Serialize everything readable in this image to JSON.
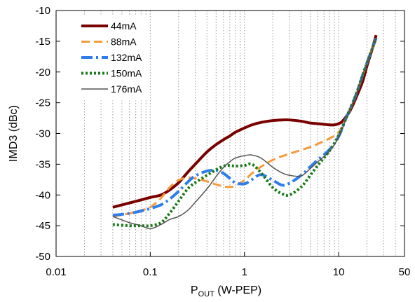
{
  "chart_data": {
    "type": "line",
    "title": "",
    "xlabel": {
      "main": "P",
      "sub": "OUT",
      "rest": " (W-PEP)"
    },
    "ylabel": "IMD3 (dBc)",
    "xscale": "log",
    "xlim": [
      0.01,
      50
    ],
    "ylim": [
      -50,
      -10
    ],
    "xticks": [
      {
        "value": 0.01,
        "label": "0.01"
      },
      {
        "value": 0.1,
        "label": "0.1"
      },
      {
        "value": 1,
        "label": "1"
      },
      {
        "value": 10,
        "label": "10"
      },
      {
        "value": 50,
        "label": "50"
      }
    ],
    "yticks": [
      {
        "value": -10,
        "label": "-10"
      },
      {
        "value": -15,
        "label": "-15"
      },
      {
        "value": -20,
        "label": "-20"
      },
      {
        "value": -25,
        "label": "-25"
      },
      {
        "value": -30,
        "label": "-30"
      },
      {
        "value": -35,
        "label": "-35"
      },
      {
        "value": -40,
        "label": "-40"
      },
      {
        "value": -45,
        "label": "-45"
      },
      {
        "value": -50,
        "label": "-50"
      }
    ],
    "grid": "vertical minor log lines dotted",
    "legend_position": "top-left",
    "series": [
      {
        "name": "44mA",
        "color": "#7a0000",
        "dash": "solid",
        "width": 4,
        "x": [
          0.04,
          0.06,
          0.08,
          0.1,
          0.13,
          0.16,
          0.2,
          0.25,
          0.3,
          0.4,
          0.5,
          0.6,
          0.7,
          0.8,
          1.0,
          1.2,
          1.5,
          2.0,
          2.5,
          3.0,
          4.0,
          5.0,
          6.0,
          7.0,
          8.0,
          9.0,
          10.0,
          11.0,
          13.0,
          15.0,
          18.0,
          20.0,
          23.0,
          25.0
        ],
        "y": [
          -42.0,
          -41.3,
          -40.8,
          -40.4,
          -40.0,
          -39.2,
          -38.0,
          -36.3,
          -35.0,
          -33.0,
          -31.8,
          -31.0,
          -30.4,
          -29.8,
          -29.1,
          -28.6,
          -28.2,
          -27.9,
          -27.8,
          -27.8,
          -28.0,
          -28.3,
          -28.4,
          -28.5,
          -28.6,
          -28.6,
          -28.4,
          -28.0,
          -26.5,
          -24.5,
          -21.5,
          -19.0,
          -16.0,
          -14.0
        ]
      },
      {
        "name": "88mA",
        "color": "#f59a3d",
        "dash": "long-dash",
        "width": 3,
        "x": [
          0.04,
          0.06,
          0.08,
          0.1,
          0.13,
          0.16,
          0.2,
          0.25,
          0.3,
          0.4,
          0.5,
          0.6,
          0.7,
          0.8,
          1.0,
          1.2,
          1.5,
          2.0,
          3.0,
          4.0,
          5.0,
          6.0,
          8.0,
          10.0,
          12.0,
          15.0,
          18.0,
          20.0,
          23.0,
          25.0
        ],
        "y": [
          -43.5,
          -43.0,
          -42.5,
          -42.0,
          -40.5,
          -38.8,
          -37.6,
          -37.2,
          -37.3,
          -37.8,
          -38.3,
          -38.6,
          -38.7,
          -38.5,
          -37.6,
          -36.5,
          -35.4,
          -34.3,
          -33.3,
          -32.7,
          -32.2,
          -31.7,
          -30.8,
          -29.8,
          -27.5,
          -24.0,
          -20.5,
          -18.5,
          -16.0,
          -14.5
        ]
      },
      {
        "name": "132mA",
        "color": "#2e7de9",
        "dash": "dash-dot",
        "width": 4,
        "x": [
          0.04,
          0.06,
          0.08,
          0.1,
          0.13,
          0.16,
          0.2,
          0.25,
          0.3,
          0.4,
          0.5,
          0.6,
          0.7,
          0.8,
          1.0,
          1.2,
          1.5,
          2.0,
          2.5,
          3.0,
          4.0,
          5.0,
          6.0,
          8.0,
          10.0,
          12.0,
          15.0,
          18.0,
          20.0,
          23.0,
          25.0
        ],
        "y": [
          -43.3,
          -43.0,
          -42.6,
          -42.2,
          -41.6,
          -40.7,
          -39.4,
          -37.9,
          -36.9,
          -36.1,
          -36.0,
          -36.5,
          -37.3,
          -38.0,
          -38.2,
          -37.5,
          -36.7,
          -37.6,
          -38.4,
          -38.1,
          -36.8,
          -35.4,
          -34.3,
          -32.6,
          -30.5,
          -27.5,
          -24.0,
          -20.5,
          -18.5,
          -16.0,
          -14.5
        ]
      },
      {
        "name": "150mA",
        "color": "#1a7a1a",
        "dash": "dotted",
        "width": 4,
        "x": [
          0.04,
          0.06,
          0.08,
          0.1,
          0.13,
          0.16,
          0.2,
          0.25,
          0.3,
          0.4,
          0.5,
          0.6,
          0.7,
          0.8,
          1.0,
          1.2,
          1.5,
          2.0,
          2.5,
          3.0,
          4.0,
          5.0,
          6.0,
          8.0,
          10.0,
          12.0,
          15.0,
          18.0,
          20.0,
          23.0,
          25.0
        ],
        "y": [
          -44.8,
          -45.0,
          -45.0,
          -45.0,
          -44.5,
          -43.0,
          -41.0,
          -39.0,
          -38.0,
          -36.8,
          -35.9,
          -35.3,
          -35.2,
          -35.3,
          -35.2,
          -35.0,
          -36.4,
          -38.8,
          -39.8,
          -40.0,
          -38.7,
          -36.8,
          -35.2,
          -32.8,
          -30.3,
          -27.5,
          -24.0,
          -20.5,
          -18.5,
          -16.0,
          -14.5
        ]
      },
      {
        "name": "176mA",
        "color": "#555555",
        "dash": "solid",
        "width": 1.5,
        "x": [
          0.04,
          0.06,
          0.08,
          0.1,
          0.13,
          0.16,
          0.2,
          0.25,
          0.3,
          0.4,
          0.5,
          0.6,
          0.7,
          0.8,
          1.0,
          1.2,
          1.5,
          2.0,
          2.5,
          3.0,
          4.0,
          5.0,
          6.0,
          8.0,
          10.0,
          12.0,
          15.0,
          18.0,
          20.0,
          23.0,
          25.0
        ],
        "y": [
          -43.5,
          -44.5,
          -45.0,
          -45.5,
          -44.8,
          -44.0,
          -43.5,
          -42.5,
          -41.2,
          -39.0,
          -37.0,
          -35.5,
          -34.6,
          -34.0,
          -33.6,
          -33.5,
          -34.0,
          -35.5,
          -36.4,
          -36.8,
          -36.9,
          -35.7,
          -34.6,
          -32.9,
          -30.6,
          -27.6,
          -24.0,
          -20.5,
          -18.5,
          -16.0,
          -14.5
        ]
      }
    ]
  }
}
